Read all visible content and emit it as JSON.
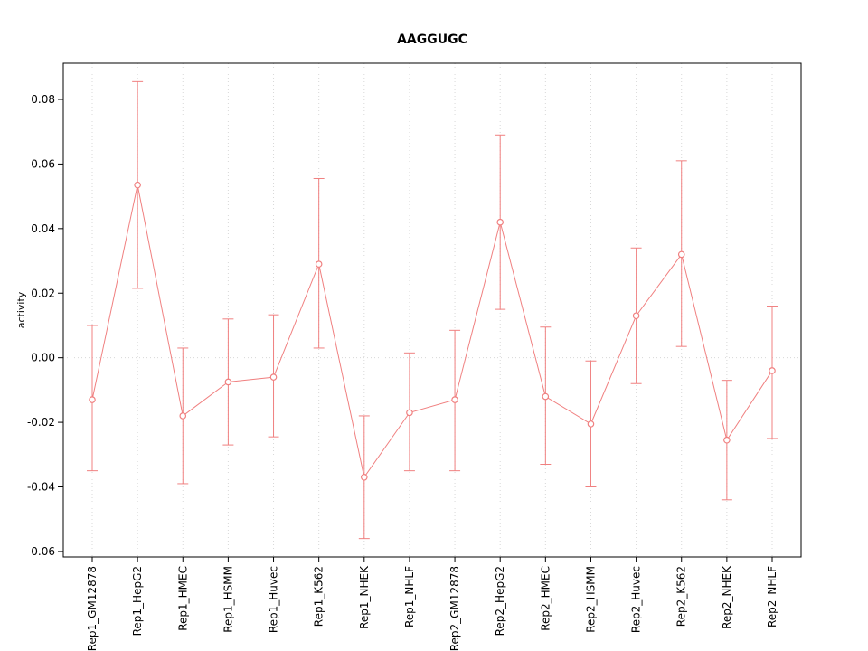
{
  "page": {
    "background": "#ffffff"
  },
  "chart_data": {
    "type": "line",
    "title": "AAGGUGC",
    "xlabel": "",
    "ylabel": "activity",
    "legend_position": "none",
    "point_style": "open-circle",
    "error_bars": true,
    "grid": {
      "vertical_gridlines": "dotted at each category",
      "zero_line": "dotted horizontal at y=0"
    },
    "color": "#f08080",
    "grid_color": "#d8d8d8",
    "axis_color": "#000000",
    "ylim": [
      -0.0617,
      0.0912
    ],
    "yticks": [
      -0.06,
      -0.04,
      -0.02,
      0.0,
      0.02,
      0.04,
      0.06,
      0.08
    ],
    "categories": [
      "Rep1_GM12878",
      "Rep1_HepG2",
      "Rep1_HMEC",
      "Rep1_HSMM",
      "Rep1_Huvec",
      "Rep1_K562",
      "Rep1_NHEK",
      "Rep1_NHLF",
      "Rep2_GM12878",
      "Rep2_HepG2",
      "Rep2_HMEC",
      "Rep2_HSMM",
      "Rep2_Huvec",
      "Rep2_K562",
      "Rep2_NHEK",
      "Rep2_NHLF"
    ],
    "series": [
      {
        "name": "AAGGUGC activity",
        "values": [
          -0.013,
          0.0535,
          -0.018,
          -0.0075,
          -0.006,
          0.029,
          -0.037,
          -0.017,
          -0.013,
          0.042,
          -0.012,
          -0.0205,
          0.013,
          0.032,
          -0.0255,
          -0.004
        ],
        "ci_upper": [
          0.01,
          0.0855,
          0.003,
          0.012,
          0.0133,
          0.0555,
          -0.018,
          0.0015,
          0.0085,
          0.069,
          0.0095,
          -0.001,
          0.034,
          0.061,
          -0.007,
          0.016
        ],
        "ci_lower": [
          -0.035,
          0.0215,
          -0.039,
          -0.027,
          -0.0245,
          0.003,
          -0.056,
          -0.035,
          -0.035,
          0.015,
          -0.033,
          -0.04,
          -0.008,
          0.0035,
          -0.044,
          -0.025
        ]
      }
    ]
  }
}
